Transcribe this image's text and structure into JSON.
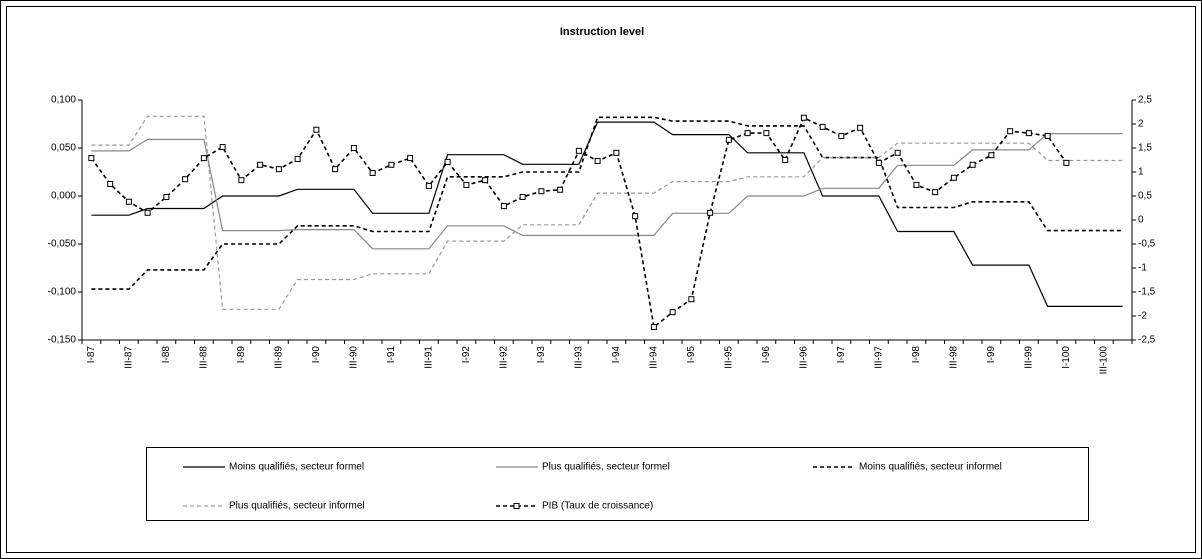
{
  "chart_data": {
    "type": "line",
    "title": "Instruction level",
    "categories": [
      "I-87",
      null,
      "III-87",
      null,
      "I-88",
      null,
      "III-88",
      null,
      "I-89",
      null,
      "III-89",
      null,
      "I-90",
      null,
      "III-90",
      null,
      "I-91",
      null,
      "III-91",
      null,
      "I-92",
      null,
      "III-92",
      null,
      "I-93",
      null,
      "III-93",
      null,
      "I-94",
      null,
      "III-94",
      null,
      "I-95",
      null,
      "III-95",
      null,
      "I-96",
      null,
      "III-96",
      null,
      "I-97",
      null,
      "III-97",
      null,
      "I-98",
      null,
      "III-98",
      null,
      "I-99",
      null,
      "III-99",
      null,
      "I-100",
      null,
      "III-100",
      null
    ],
    "ylim": [
      -0.15,
      0.1
    ],
    "yticks": [
      {
        "value": 0.1,
        "label": "0,100"
      },
      {
        "value": 0.05,
        "label": "0,050"
      },
      {
        "value": 0,
        "label": "0,000"
      },
      {
        "value": -0.05,
        "label": "-0,050"
      },
      {
        "value": -0.1,
        "label": "-0,100"
      },
      {
        "value": -0.15,
        "label": "-0,150"
      }
    ],
    "y2lim": [
      -2.5,
      2.5
    ],
    "y2ticks": [
      {
        "value": 2.5,
        "label": "2,5"
      },
      2,
      {
        "value": 1.5,
        "label": "1,5"
      },
      1,
      {
        "value": 0.5,
        "label": "0,5"
      },
      0,
      {
        "value": -0.5,
        "label": "-0,5"
      },
      -1,
      {
        "value": -1.5,
        "label": "-1,5"
      },
      -2,
      {
        "value": -2.5,
        "label": "-2,5"
      }
    ],
    "grid": false,
    "legend": "bottom",
    "series": [
      {
        "name": "Moins qualifiés, secteur formel",
        "color": "#000000",
        "line_style": "solid",
        "values": [
          -0.02,
          -0.02,
          -0.02,
          -0.013,
          -0.013,
          -0.013,
          -0.013,
          0.0,
          0.0,
          0.0,
          0.0,
          0.007,
          0.007,
          0.007,
          0.007,
          -0.018,
          -0.018,
          -0.018,
          -0.018,
          0.043,
          0.043,
          0.043,
          0.043,
          0.033,
          0.033,
          0.033,
          0.033,
          0.077,
          0.077,
          0.077,
          0.077,
          0.064,
          0.064,
          0.064,
          0.064,
          0.045,
          0.045,
          0.045,
          0.045,
          0.0,
          0.0,
          0.0,
          0.0,
          -0.037,
          -0.037,
          -0.037,
          -0.037,
          -0.072,
          -0.072,
          -0.072,
          -0.072,
          -0.115,
          -0.115,
          -0.115,
          -0.115,
          -0.115
        ]
      },
      {
        "name": "Plus qualifiés, secteur formel",
        "color": "#888888",
        "line_style": "solid",
        "values": [
          0.047,
          0.047,
          0.047,
          0.059,
          0.059,
          0.059,
          0.059,
          -0.036,
          -0.036,
          -0.036,
          -0.036,
          -0.035,
          -0.035,
          -0.035,
          -0.035,
          -0.055,
          -0.055,
          -0.055,
          -0.055,
          -0.031,
          -0.031,
          -0.031,
          -0.031,
          -0.041,
          -0.041,
          -0.041,
          -0.041,
          -0.041,
          -0.041,
          -0.041,
          -0.041,
          -0.018,
          -0.018,
          -0.018,
          -0.018,
          0.0,
          0.0,
          0.0,
          0.0,
          0.008,
          0.008,
          0.008,
          0.008,
          0.032,
          0.032,
          0.032,
          0.032,
          0.048,
          0.048,
          0.048,
          0.048,
          0.065,
          0.065,
          0.065,
          0.065,
          0.065
        ]
      },
      {
        "name": "Moins qualifiés, secteur informel",
        "color": "#000000",
        "line_style": "dashed",
        "values": [
          -0.097,
          -0.097,
          -0.097,
          -0.077,
          -0.077,
          -0.077,
          -0.077,
          -0.05,
          -0.05,
          -0.05,
          -0.05,
          -0.031,
          -0.031,
          -0.031,
          -0.031,
          -0.037,
          -0.037,
          -0.037,
          -0.037,
          0.02,
          0.02,
          0.02,
          0.02,
          0.025,
          0.025,
          0.025,
          0.025,
          0.082,
          0.082,
          0.082,
          0.082,
          0.078,
          0.078,
          0.078,
          0.078,
          0.073,
          0.073,
          0.073,
          0.073,
          0.04,
          0.04,
          0.04,
          0.04,
          -0.012,
          -0.012,
          -0.012,
          -0.012,
          -0.006,
          -0.006,
          -0.006,
          -0.006,
          -0.036,
          -0.036,
          -0.036,
          -0.036,
          -0.036
        ]
      },
      {
        "name": "Plus qualifiés, secteur informel",
        "color": "#999999",
        "line_style": "dashed",
        "values": [
          0.053,
          0.053,
          0.053,
          0.083,
          0.083,
          0.083,
          0.083,
          -0.118,
          -0.118,
          -0.118,
          -0.118,
          -0.087,
          -0.087,
          -0.087,
          -0.087,
          -0.081,
          -0.081,
          -0.081,
          -0.081,
          -0.047,
          -0.047,
          -0.047,
          -0.047,
          -0.03,
          -0.03,
          -0.03,
          -0.03,
          0.003,
          0.003,
          0.003,
          0.003,
          0.015,
          0.015,
          0.015,
          0.015,
          0.02,
          0.02,
          0.02,
          0.02,
          0.04,
          0.04,
          0.04,
          0.04,
          0.055,
          0.055,
          0.055,
          0.055,
          0.055,
          0.055,
          0.055,
          0.055,
          0.037,
          0.037,
          0.037,
          0.037,
          0.037
        ]
      },
      {
        "name": "PIB (Taux de croissance)",
        "color": "#000000",
        "line_style": "dashed",
        "marker": "square",
        "axis": "y2",
        "values": [
          1.29,
          0.75,
          0.38,
          0.15,
          0.48,
          0.85,
          1.29,
          1.52,
          0.83,
          1.15,
          1.06,
          1.27,
          1.88,
          1.06,
          1.5,
          0.98,
          1.15,
          1.29,
          0.71,
          1.21,
          0.73,
          0.83,
          0.29,
          0.48,
          0.6,
          0.63,
          1.44,
          1.23,
          1.4,
          0.08,
          -2.23,
          -1.92,
          -1.65,
          0.15,
          1.67,
          1.81,
          1.81,
          1.25,
          2.13,
          1.94,
          1.75,
          1.92,
          1.19,
          1.4,
          0.73,
          0.58,
          0.88,
          1.15,
          1.35,
          1.85,
          1.81,
          1.75,
          1.19,
          null,
          null,
          null
        ]
      }
    ]
  }
}
